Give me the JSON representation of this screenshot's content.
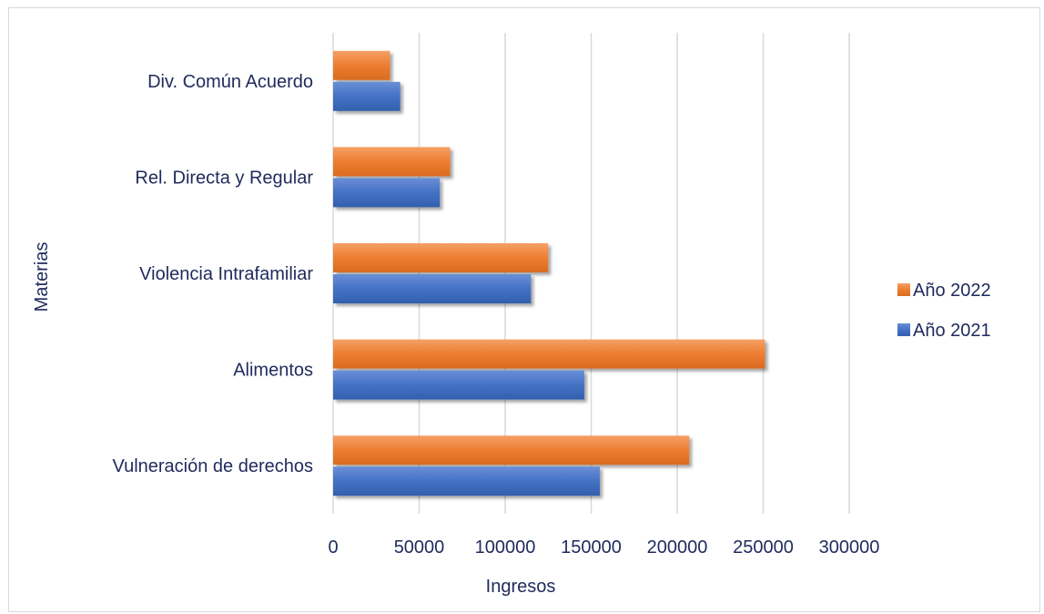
{
  "chart_data": {
    "type": "bar",
    "orientation": "horizontal",
    "categories": [
      "Div. Común Acuerdo",
      "Rel. Directa y Regular",
      "Violencia Intrafamiliar",
      "Alimentos",
      "Vulneración de derechos"
    ],
    "series": [
      {
        "name": "Año 2022",
        "color": "#ed7d31",
        "values": [
          33000,
          68000,
          125000,
          251000,
          207000
        ]
      },
      {
        "name": "Año 2021",
        "color": "#4472c4",
        "values": [
          39000,
          62000,
          115000,
          146000,
          155000
        ]
      }
    ],
    "xlabel": "Ingresos",
    "ylabel": "Materias",
    "xlim": [
      0,
      300000
    ],
    "xticks": [
      "0",
      "50000",
      "100000",
      "150000",
      "200000",
      "250000",
      "300000"
    ],
    "grid": "vertical",
    "legend_position": "right"
  }
}
